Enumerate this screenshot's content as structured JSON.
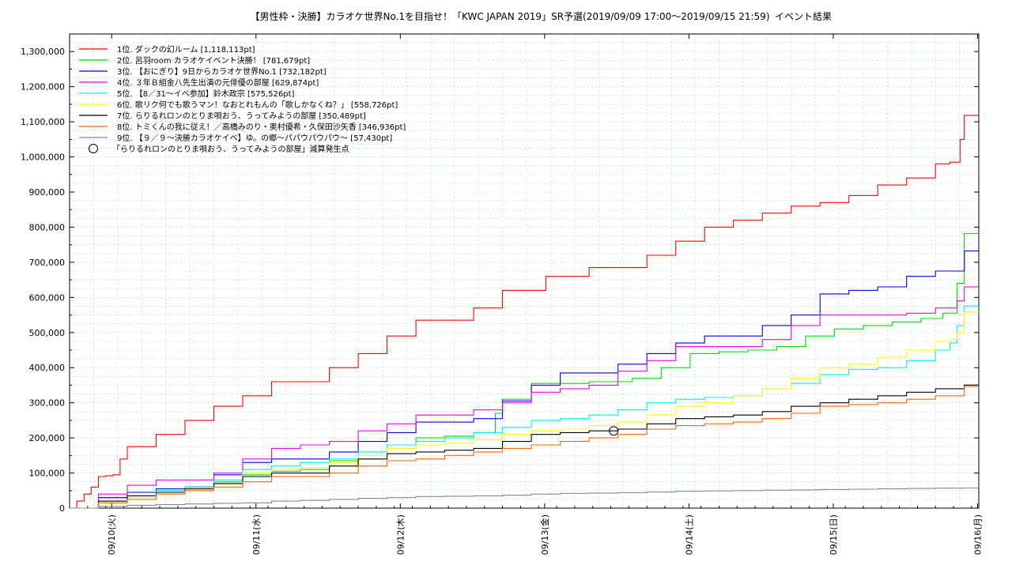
{
  "chart_data": {
    "type": "line",
    "title": "【男性枠・決勝】カラオケ世界No.1を目指せ！「KWC JAPAN 2019」SR予選(2019/09/09 17:00〜2019/09/15 21:59)",
    "subtitle": "イベント結果",
    "xlabel": "",
    "ylabel": "",
    "x_unit": "days since 2019/09/09 17:00",
    "xlim": [
      0,
      6.3
    ],
    "ylim": [
      0,
      1350000
    ],
    "y_ticks": [
      0,
      100000,
      200000,
      300000,
      400000,
      500000,
      600000,
      700000,
      800000,
      900000,
      1000000,
      1100000,
      1200000,
      1300000
    ],
    "y_tick_labels": [
      "0",
      "100,000",
      "200,000",
      "300,000",
      "400,000",
      "500,000",
      "600,000",
      "700,000",
      "800,000",
      "900,000",
      "1,000,000",
      "1,100,000",
      "1,200,000",
      "1,300,000"
    ],
    "x_ticks": [
      0.2917,
      1.2917,
      2.2917,
      3.2917,
      4.2917,
      5.2917,
      6.2917
    ],
    "x_tick_labels": [
      "09/10(火)",
      "09/11(水)",
      "09/12(木)",
      "09/13(金)",
      "09/14(土)",
      "09/15(日)",
      "09/16(月)"
    ],
    "grid": true,
    "legend_position": "top-left",
    "series": [
      {
        "name": "1位. ダックの幻ルーム [1,118,113pt]",
        "color": "#ff0000",
        "x": [
          0,
          0.05,
          0.1,
          0.15,
          0.2,
          0.25,
          0.3,
          0.35,
          0.4,
          0.6,
          0.8,
          1.0,
          1.2,
          1.4,
          1.6,
          1.8,
          2.0,
          2.2,
          2.4,
          2.6,
          2.8,
          3.0,
          3.3,
          3.6,
          3.9,
          4.0,
          4.2,
          4.4,
          4.6,
          4.8,
          5.0,
          5.2,
          5.4,
          5.6,
          5.8,
          6.0,
          6.1,
          6.17,
          6.2,
          6.3
        ],
        "y": [
          0,
          20000,
          40000,
          60000,
          90000,
          92000,
          95000,
          140000,
          175000,
          210000,
          250000,
          290000,
          320000,
          360000,
          360000,
          400000,
          440000,
          490000,
          535000,
          535000,
          570000,
          620000,
          660000,
          685000,
          685000,
          720000,
          760000,
          800000,
          820000,
          840000,
          860000,
          870000,
          890000,
          920000,
          940000,
          980000,
          985000,
          1050000,
          1118113,
          1118113
        ]
      },
      {
        "name": "2位. 呂羽room カラオケイベント決勝！ [781,679pt]",
        "color": "#00dd00",
        "x": [
          0,
          0.2,
          0.4,
          0.6,
          0.8,
          1.0,
          1.2,
          1.4,
          1.6,
          1.8,
          2.0,
          2.2,
          2.4,
          2.6,
          2.8,
          2.95,
          3.0,
          3.2,
          3.4,
          3.6,
          3.9,
          4.1,
          4.3,
          4.5,
          4.7,
          4.9,
          5.1,
          5.3,
          5.5,
          5.7,
          5.9,
          6.05,
          6.15,
          6.2,
          6.3
        ],
        "y": [
          0,
          30000,
          45000,
          50000,
          60000,
          75000,
          95000,
          105000,
          110000,
          135000,
          160000,
          180000,
          200000,
          205000,
          215000,
          270000,
          310000,
          355000,
          355000,
          360000,
          370000,
          400000,
          440000,
          445000,
          450000,
          460000,
          490000,
          510000,
          520000,
          530000,
          540000,
          555000,
          640000,
          781679,
          781679
        ]
      },
      {
        "name": "3位. 【おにぎり】9日からカラオケ世界No.1 [732,182pt]",
        "color": "#0000ee",
        "x": [
          0,
          0.2,
          0.4,
          0.6,
          0.8,
          1.0,
          1.2,
          1.4,
          1.6,
          1.8,
          2.0,
          2.2,
          2.4,
          2.6,
          2.8,
          3.0,
          3.2,
          3.4,
          3.6,
          3.8,
          4.0,
          4.2,
          4.4,
          4.6,
          4.8,
          5.0,
          5.2,
          5.4,
          5.6,
          5.8,
          6.0,
          6.2,
          6.3
        ],
        "y": [
          0,
          30000,
          45000,
          55000,
          60000,
          95000,
          130000,
          140000,
          140000,
          160000,
          190000,
          215000,
          245000,
          245000,
          255000,
          305000,
          350000,
          385000,
          385000,
          410000,
          440000,
          470000,
          490000,
          490000,
          520000,
          550000,
          610000,
          620000,
          630000,
          660000,
          675000,
          732182,
          732182
        ]
      },
      {
        "name": "4位. ３年Ｂ組金八先生出演の元俳優の部屋 [629,874pt]",
        "color": "#ee00ee",
        "x": [
          0,
          0.2,
          0.4,
          0.6,
          0.8,
          1.0,
          1.2,
          1.4,
          1.6,
          1.8,
          2.0,
          2.2,
          2.4,
          2.6,
          2.8,
          3.0,
          3.2,
          3.4,
          3.6,
          3.8,
          4.0,
          4.2,
          4.4,
          4.6,
          4.8,
          5.0,
          5.2,
          5.4,
          5.6,
          5.8,
          6.0,
          6.15,
          6.2,
          6.3
        ],
        "y": [
          0,
          40000,
          65000,
          80000,
          80000,
          100000,
          140000,
          170000,
          180000,
          190000,
          220000,
          240000,
          265000,
          265000,
          280000,
          300000,
          330000,
          340000,
          350000,
          390000,
          420000,
          460000,
          460000,
          460000,
          480000,
          520000,
          550000,
          550000,
          550000,
          555000,
          570000,
          590000,
          629874,
          629874
        ]
      },
      {
        "name": "5位. 【8／31〜イベ参加】鈴木政宗 [575,526pt]",
        "color": "#00eeee",
        "x": [
          0,
          0.2,
          0.4,
          0.6,
          0.8,
          1.0,
          1.2,
          1.4,
          1.6,
          1.8,
          2.0,
          2.2,
          2.4,
          2.6,
          2.8,
          3.0,
          3.2,
          3.4,
          3.6,
          3.8,
          4.0,
          4.2,
          4.4,
          4.6,
          4.8,
          5.0,
          5.2,
          5.4,
          5.6,
          5.8,
          6.0,
          6.1,
          6.15,
          6.2,
          6.3
        ],
        "y": [
          0,
          20000,
          35000,
          50000,
          60000,
          80000,
          110000,
          120000,
          130000,
          140000,
          160000,
          180000,
          190000,
          200000,
          215000,
          230000,
          250000,
          255000,
          265000,
          280000,
          300000,
          310000,
          315000,
          320000,
          340000,
          355000,
          380000,
          395000,
          400000,
          420000,
          450000,
          470000,
          520000,
          575526,
          575526
        ]
      },
      {
        "name": "6位. 歌リク何でも歌うマン！なおとれもんの「歌しかなくね？」 [558,726pt]",
        "color": "#ffff00",
        "x": [
          0,
          0.2,
          0.4,
          0.6,
          0.8,
          1.0,
          1.2,
          1.4,
          1.6,
          1.8,
          2.0,
          2.2,
          2.4,
          2.6,
          2.8,
          3.0,
          3.2,
          3.4,
          3.6,
          3.8,
          4.0,
          4.2,
          4.4,
          4.6,
          4.8,
          5.0,
          5.2,
          5.4,
          5.6,
          5.8,
          6.0,
          6.1,
          6.15,
          6.2,
          6.3
        ],
        "y": [
          0,
          15000,
          30000,
          45000,
          55000,
          70000,
          100000,
          110000,
          115000,
          130000,
          150000,
          170000,
          180000,
          185000,
          195000,
          210000,
          220000,
          225000,
          235000,
          245000,
          265000,
          290000,
          300000,
          320000,
          340000,
          370000,
          400000,
          410000,
          430000,
          450000,
          475000,
          480000,
          500000,
          558726,
          558726
        ]
      },
      {
        "name": "7位. らりるれロンのとりま唄おう、うってみようの部屋 [350,489pt]",
        "color": "#000000",
        "x": [
          0,
          0.2,
          0.4,
          0.6,
          0.8,
          1.0,
          1.2,
          1.4,
          1.6,
          1.8,
          2.0,
          2.2,
          2.4,
          2.6,
          2.8,
          3.0,
          3.2,
          3.4,
          3.6,
          3.8,
          4.0,
          4.2,
          4.4,
          4.6,
          4.8,
          5.0,
          5.2,
          5.4,
          5.6,
          5.8,
          6.0,
          6.2,
          6.3
        ],
        "y": [
          0,
          20000,
          35000,
          45000,
          55000,
          70000,
          90000,
          100000,
          100000,
          120000,
          140000,
          155000,
          160000,
          165000,
          170000,
          190000,
          210000,
          215000,
          220000,
          225000,
          240000,
          255000,
          260000,
          265000,
          275000,
          290000,
          300000,
          310000,
          320000,
          330000,
          340000,
          350489,
          350489
        ]
      },
      {
        "name": "8位. トミくんの我に従え！／高橋みのり・奥村優希・久保田沙矢香 [346,936pt]",
        "color": "#ff6600",
        "x": [
          0,
          0.2,
          0.4,
          0.6,
          0.8,
          1.0,
          1.2,
          1.4,
          1.6,
          1.8,
          2.0,
          2.2,
          2.4,
          2.6,
          2.8,
          3.0,
          3.2,
          3.4,
          3.6,
          3.8,
          4.0,
          4.2,
          4.4,
          4.6,
          4.8,
          5.0,
          5.2,
          5.4,
          5.6,
          5.8,
          6.0,
          6.2,
          6.3
        ],
        "y": [
          0,
          15000,
          25000,
          40000,
          50000,
          60000,
          75000,
          90000,
          90000,
          100000,
          120000,
          135000,
          140000,
          150000,
          160000,
          170000,
          180000,
          190000,
          200000,
          210000,
          225000,
          235000,
          240000,
          245000,
          255000,
          270000,
          290000,
          295000,
          300000,
          310000,
          320000,
          346936,
          346936
        ]
      },
      {
        "name": "9位. 【９／９〜決勝カラオケイベ】ゆ。の郷〜パパウパウパウ〜 [57,430pt]",
        "color": "#888888",
        "x": [
          0,
          0.2,
          0.4,
          0.6,
          0.8,
          1.0,
          1.2,
          1.4,
          1.6,
          1.8,
          2.0,
          2.2,
          2.4,
          2.6,
          2.8,
          3.0,
          3.2,
          3.4,
          3.6,
          3.8,
          4.0,
          4.2,
          4.4,
          4.6,
          4.8,
          5.0,
          5.2,
          5.4,
          5.6,
          5.8,
          6.0,
          6.2,
          6.3
        ],
        "y": [
          0,
          5000,
          8000,
          10000,
          12000,
          14000,
          15000,
          20000,
          22000,
          25000,
          28000,
          30000,
          33000,
          34000,
          35000,
          37000,
          40000,
          42000,
          43000,
          44000,
          46000,
          48000,
          49000,
          50000,
          51000,
          52000,
          53000,
          54000,
          55000,
          56000,
          57000,
          57430,
          57430
        ]
      }
    ],
    "annotations": [
      {
        "label": "「らりるれロンのとりま唄おう、うってみようの部屋」減算発生点",
        "x": 3.77,
        "y": 220000,
        "marker": "circle"
      }
    ]
  }
}
